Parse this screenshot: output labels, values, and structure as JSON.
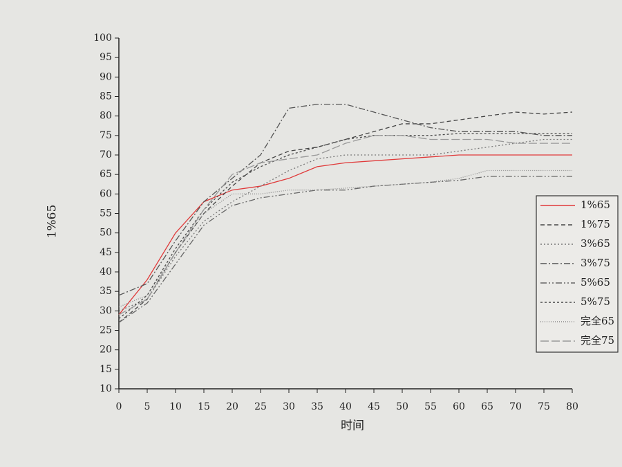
{
  "chart_data": {
    "type": "line",
    "x_label": "时间",
    "y_label": "1%65",
    "x": [
      0,
      5,
      10,
      15,
      20,
      25,
      30,
      35,
      40,
      45,
      50,
      55,
      60,
      65,
      70,
      75,
      80
    ],
    "xlim": [
      0,
      80
    ],
    "xticks": [
      0,
      5,
      10,
      15,
      20,
      25,
      30,
      35,
      40,
      45,
      50,
      55,
      60,
      65,
      70,
      75,
      80
    ],
    "ylim": [
      10,
      100
    ],
    "yticks": [
      10,
      15,
      20,
      25,
      30,
      35,
      40,
      45,
      50,
      55,
      60,
      65,
      70,
      75,
      80,
      85,
      90,
      95,
      100
    ],
    "legend": "right",
    "series": [
      {
        "name": "1%65",
        "color": "#e03a3a",
        "line_style": "solid",
        "values": [
          29,
          38,
          50,
          58,
          61,
          62,
          64,
          67,
          68,
          68.5,
          69,
          69.5,
          70,
          70,
          70,
          70,
          70
        ]
      },
      {
        "name": "1%75",
        "color": "#444444",
        "line_style": "dashed",
        "values": [
          27,
          33,
          45,
          55,
          62,
          68,
          71,
          72,
          74,
          76,
          78,
          78,
          79,
          80,
          81,
          80.5,
          81
        ]
      },
      {
        "name": "3%65",
        "color": "#777777",
        "line_style": "dotted",
        "values": [
          30,
          33,
          44,
          53,
          58,
          62,
          66,
          69,
          70,
          70,
          70,
          70,
          71,
          72,
          73,
          74,
          74
        ]
      },
      {
        "name": "3%75",
        "color": "#555555",
        "line_style": "dashdot",
        "values": [
          34,
          37,
          48,
          58,
          64,
          70,
          82,
          83,
          83,
          81,
          79,
          77,
          76,
          76,
          76,
          75,
          75
        ]
      },
      {
        "name": "5%65",
        "color": "#666666",
        "line_style": "dashdotdot",
        "values": [
          27,
          32,
          42,
          52,
          57,
          59,
          60,
          61,
          61,
          62,
          62.5,
          63,
          63.5,
          64.5,
          64.5,
          64.5,
          64.5
        ]
      },
      {
        "name": "5%75",
        "color": "#4a4a4a",
        "line_style": "shortdash",
        "values": [
          28,
          34,
          46,
          56,
          63,
          67,
          70,
          72,
          74,
          75,
          75,
          75,
          75.5,
          75.5,
          75.5,
          75.5,
          75.5
        ]
      },
      {
        "name": "完全65",
        "color": "#888888",
        "line_style": "shortdot",
        "values": [
          31,
          34,
          45,
          55,
          60,
          60,
          61,
          61,
          61.5,
          62,
          62.5,
          63,
          64,
          66,
          66,
          66,
          66
        ]
      },
      {
        "name": "完全75",
        "color": "#999999",
        "line_style": "longdash",
        "values": [
          29,
          33,
          45,
          56,
          65,
          68,
          69,
          70,
          73,
          75,
          75,
          74,
          74,
          74,
          73,
          73,
          73
        ]
      }
    ]
  }
}
